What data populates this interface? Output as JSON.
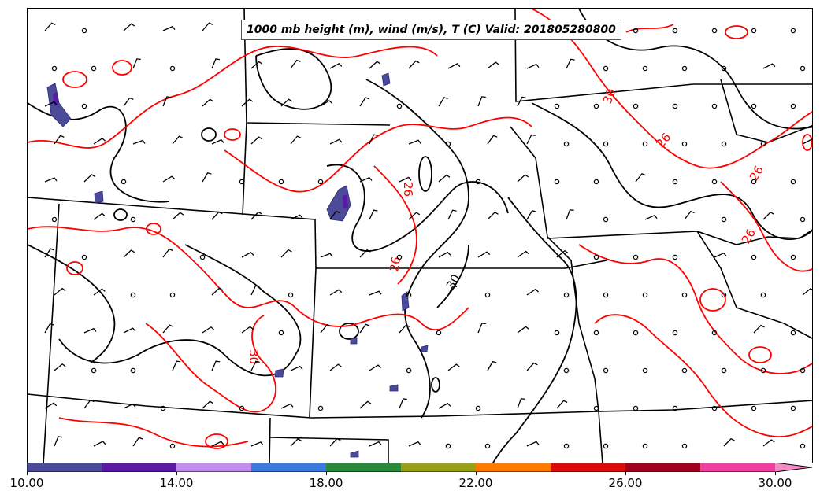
{
  "title": "1000 mb height (m), wind (m/s), T (C) Valid: 201805280800",
  "contour_labels": {
    "height": "30",
    "temperature": [
      "26",
      "30"
    ]
  },
  "colorbar": {
    "tick_labels": [
      "10.00",
      "14.00",
      "18.00",
      "22.00",
      "26.00",
      "30.00"
    ],
    "colors": [
      "#4b4b9a",
      "#5a1aa6",
      "#c38df0",
      "#3c7ae0",
      "#2a8a3c",
      "#9aa018",
      "#ff7a00",
      "#dd0a0a",
      "#a0001e",
      "#f040a0"
    ],
    "extend_color": "#f58cc8"
  },
  "colors": {
    "temperature_contour": "#ff0000",
    "height_contour": "#000000",
    "boundary": "#000000",
    "shading": "#4b4b9a"
  }
}
